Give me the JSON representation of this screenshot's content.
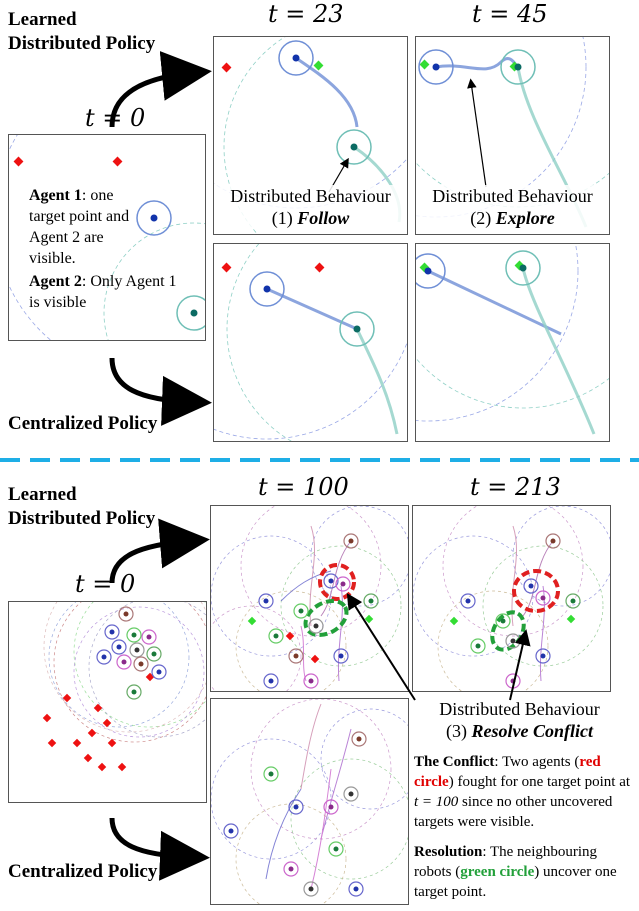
{
  "top": {
    "learned_label_1": "Learned",
    "learned_label_2": "Distributed Policy",
    "centralized_label": "Centralized Policy",
    "t0": "t = 0",
    "t23": "t = 23",
    "t45": "t = 45",
    "agent1_bold": "Agent 1",
    "agent1_text": ": one target point and Agent 2 are visible.",
    "agent2_bold": "Agent 2",
    "agent2_text": ": Only Agent 1 is visible",
    "caption1_line1": "Distributed Behaviour",
    "caption1_line2_prefix": "(1) ",
    "caption1_line2_em": "Follow",
    "caption2_line1": "Distributed Behaviour",
    "caption2_line2_prefix": "(2) ",
    "caption2_line2_em": "Explore"
  },
  "bottom": {
    "learned_label_1": "Learned",
    "learned_label_2": "Distributed Policy",
    "centralized_label": "Centralized Policy",
    "t0": "t = 0",
    "t100": "t = 100",
    "t213": "t = 213",
    "caption3_line1": "Distributed Behaviour",
    "caption3_line2_prefix": "(3) ",
    "caption3_line2_em": "Resolve Conflict",
    "conflict_bold": "The Conflict",
    "conflict_text_1": ": Two agents (",
    "conflict_red": "red circle",
    "conflict_text_2": ") fought for one target point at ",
    "conflict_t": "t = 100",
    "conflict_text_3": " since no other uncovered targets were visible.",
    "resolution_bold": "Resolution",
    "resolution_text_1": ": The neighbouring robots (",
    "resolution_green": "green circle",
    "resolution_text_2": ") uncover one target point."
  },
  "colors": {
    "target_red": "#ee1111",
    "covered_green": "#33dd33",
    "agent1_blue": "#6f8fd6",
    "agent2_teal": "#6fbfb6",
    "divider_cyan": "#1eaee6",
    "conflict_red": "#e02020",
    "resolve_green": "#22a03a"
  }
}
